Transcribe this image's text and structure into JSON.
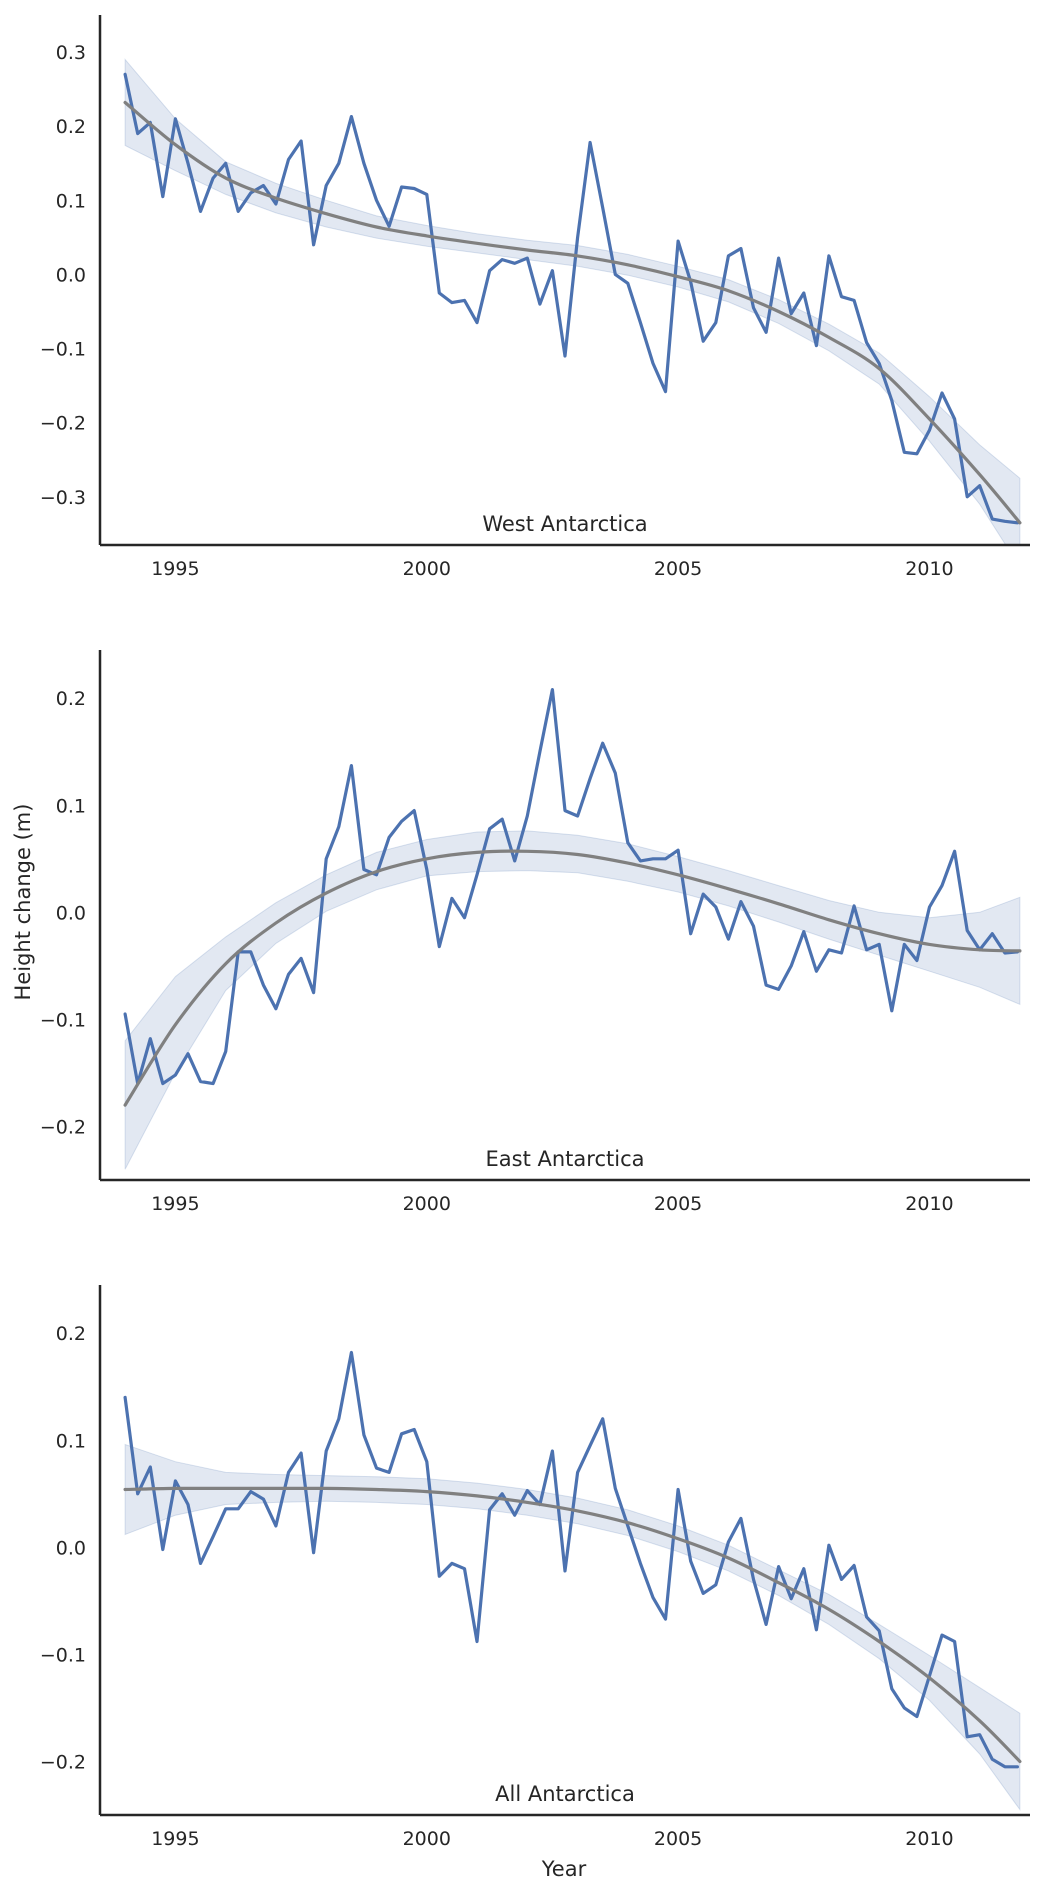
{
  "figure": {
    "ylabel": "Height change (m)",
    "xlabel": "Year",
    "colors": {
      "data": "#4c72b0",
      "fit": "#808080",
      "band": "#4c72b0",
      "axis": "#262626"
    }
  },
  "chart_data": [
    {
      "type": "line",
      "title": "West Antarctica",
      "xlim": [
        1993.5,
        2012.0
      ],
      "ylim": [
        -0.365,
        0.35
      ],
      "xticks": [
        1995,
        2000,
        2005,
        2010
      ],
      "xtick_labels": [
        "1995",
        "2000",
        "2005",
        "2010"
      ],
      "yticks": [
        -0.3,
        -0.2,
        -0.1,
        0.0,
        0.1,
        0.2,
        0.3
      ],
      "ytick_labels": [
        "−0.3",
        "−0.2",
        "−0.1",
        "0.0",
        "0.1",
        "0.2",
        "0.3"
      ],
      "grid": false,
      "x": [
        1994.0,
        1994.25,
        1994.5,
        1994.75,
        1995.0,
        1995.25,
        1995.5,
        1995.75,
        1996.0,
        1996.25,
        1996.5,
        1996.75,
        1997.0,
        1997.25,
        1997.5,
        1997.75,
        1998.0,
        1998.25,
        1998.5,
        1998.75,
        1999.0,
        1999.25,
        1999.5,
        1999.75,
        2000.0,
        2000.25,
        2000.5,
        2000.75,
        2001.0,
        2001.25,
        2001.5,
        2001.75,
        2002.0,
        2002.25,
        2002.5,
        2002.75,
        2003.0,
        2003.25,
        2003.5,
        2003.75,
        2004.0,
        2004.25,
        2004.5,
        2004.75,
        2005.0,
        2005.25,
        2005.5,
        2005.75,
        2006.0,
        2006.25,
        2006.5,
        2006.75,
        2007.0,
        2007.25,
        2007.5,
        2007.75,
        2008.0,
        2008.25,
        2008.5,
        2008.75,
        2009.0,
        2009.25,
        2009.5,
        2009.75,
        2010.0,
        2010.25,
        2010.5,
        2010.75,
        2011.0,
        2011.25,
        2011.5,
        2011.75
      ],
      "series": [
        {
          "values": [
            0.27,
            0.19,
            0.205,
            0.105,
            0.21,
            0.15,
            0.085,
            0.13,
            0.15,
            0.085,
            0.11,
            0.12,
            0.095,
            0.155,
            0.18,
            0.04,
            0.12,
            0.15,
            0.213,
            0.15,
            0.1,
            0.065,
            0.118,
            0.116,
            0.108,
            -0.025,
            -0.038,
            -0.035,
            -0.065,
            0.005,
            0.02,
            0.015,
            0.022,
            -0.04,
            0.005,
            -0.11,
            0.05,
            0.178,
            0.09,
            0.0,
            -0.012,
            -0.065,
            -0.12,
            -0.158,
            0.045,
            -0.01,
            -0.09,
            -0.065,
            0.025,
            0.035,
            -0.045,
            -0.078,
            0.022,
            -0.053,
            -0.025,
            -0.096,
            0.025,
            -0.03,
            -0.035,
            -0.092,
            -0.12,
            -0.17,
            -0.24,
            -0.242,
            -0.21,
            -0.16,
            -0.195,
            -0.3,
            -0.285,
            -0.33,
            -0.333,
            -0.335
          ]
        }
      ],
      "fit": {
        "x": [
          1994,
          1995,
          1996,
          1997,
          1998,
          1999,
          2000,
          2001,
          2002,
          2003,
          2004,
          2005,
          2006,
          2007,
          2008,
          2009,
          2010,
          2011,
          2011.8
        ],
        "y": [
          0.232,
          0.175,
          0.13,
          0.103,
          0.082,
          0.064,
          0.052,
          0.042,
          0.033,
          0.025,
          0.013,
          -0.003,
          -0.022,
          -0.05,
          -0.085,
          -0.127,
          -0.195,
          -0.27,
          -0.335
        ],
        "lower": [
          0.174,
          0.14,
          0.108,
          0.083,
          0.064,
          0.049,
          0.038,
          0.029,
          0.02,
          0.011,
          -0.001,
          -0.017,
          -0.037,
          -0.066,
          -0.103,
          -0.148,
          -0.225,
          -0.31,
          -0.395
        ],
        "upper": [
          0.29,
          0.21,
          0.152,
          0.123,
          0.1,
          0.079,
          0.066,
          0.055,
          0.046,
          0.039,
          0.027,
          0.011,
          -0.007,
          -0.034,
          -0.067,
          -0.106,
          -0.165,
          -0.23,
          -0.275
        ]
      }
    },
    {
      "type": "line",
      "title": "East Antarctica",
      "xlim": [
        1993.5,
        2012.0
      ],
      "ylim": [
        -0.25,
        0.245
      ],
      "xticks": [
        1995,
        2000,
        2005,
        2010
      ],
      "xtick_labels": [
        "1995",
        "2000",
        "2005",
        "2010"
      ],
      "yticks": [
        -0.2,
        -0.1,
        0.0,
        0.1,
        0.2
      ],
      "ytick_labels": [
        "−0.2",
        "−0.1",
        "0.0",
        "0.1",
        "0.2"
      ],
      "grid": false,
      "x": [
        1994.0,
        1994.25,
        1994.5,
        1994.75,
        1995.0,
        1995.25,
        1995.5,
        1995.75,
        1996.0,
        1996.25,
        1996.5,
        1996.75,
        1997.0,
        1997.25,
        1997.5,
        1997.75,
        1998.0,
        1998.25,
        1998.5,
        1998.75,
        1999.0,
        1999.25,
        1999.5,
        1999.75,
        2000.0,
        2000.25,
        2000.5,
        2000.75,
        2001.0,
        2001.25,
        2001.5,
        2001.75,
        2002.0,
        2002.25,
        2002.5,
        2002.75,
        2003.0,
        2003.25,
        2003.5,
        2003.75,
        2004.0,
        2004.25,
        2004.5,
        2004.75,
        2005.0,
        2005.25,
        2005.5,
        2005.75,
        2006.0,
        2006.25,
        2006.5,
        2006.75,
        2007.0,
        2007.25,
        2007.5,
        2007.75,
        2008.0,
        2008.25,
        2008.5,
        2008.75,
        2009.0,
        2009.25,
        2009.5,
        2009.75,
        2010.0,
        2010.25,
        2010.5,
        2010.75,
        2011.0,
        2011.25,
        2011.5,
        2011.75
      ],
      "series": [
        {
          "values": [
            -0.095,
            -0.16,
            -0.118,
            -0.16,
            -0.152,
            -0.132,
            -0.158,
            -0.16,
            -0.13,
            -0.037,
            -0.037,
            -0.068,
            -0.09,
            -0.058,
            -0.043,
            -0.075,
            0.05,
            0.08,
            0.137,
            0.04,
            0.035,
            0.07,
            0.085,
            0.095,
            0.04,
            -0.032,
            0.013,
            -0.005,
            0.035,
            0.078,
            0.087,
            0.048,
            0.09,
            0.15,
            0.208,
            0.095,
            0.09,
            0.125,
            0.158,
            0.13,
            0.065,
            0.048,
            0.05,
            0.05,
            0.058,
            -0.02,
            0.017,
            0.005,
            -0.025,
            0.01,
            -0.013,
            -0.068,
            -0.072,
            -0.05,
            -0.018,
            -0.055,
            -0.035,
            -0.038,
            0.006,
            -0.035,
            -0.03,
            -0.092,
            -0.03,
            -0.045,
            0.005,
            0.025,
            0.057,
            -0.017,
            -0.035,
            -0.02,
            -0.038,
            -0.037
          ]
        }
      ],
      "fit": {
        "x": [
          1994,
          1995,
          1996,
          1997,
          1998,
          1999,
          2000,
          2001,
          2002,
          2003,
          2004,
          2005,
          2006,
          2007,
          2008,
          2009,
          2010,
          2011,
          2011.8
        ],
        "y": [
          -0.18,
          -0.105,
          -0.048,
          -0.01,
          0.018,
          0.038,
          0.05,
          0.056,
          0.057,
          0.054,
          0.046,
          0.035,
          0.022,
          0.008,
          -0.007,
          -0.02,
          -0.03,
          -0.035,
          -0.036
        ],
        "lower": [
          -0.24,
          -0.15,
          -0.073,
          -0.029,
          0.001,
          0.021,
          0.034,
          0.038,
          0.039,
          0.037,
          0.029,
          0.019,
          0.006,
          -0.009,
          -0.025,
          -0.04,
          -0.055,
          -0.07,
          -0.086
        ],
        "upper": [
          -0.12,
          -0.06,
          -0.023,
          0.009,
          0.035,
          0.056,
          0.068,
          0.075,
          0.076,
          0.072,
          0.064,
          0.052,
          0.039,
          0.025,
          0.011,
          0.0,
          -0.005,
          0.0,
          0.014
        ]
      }
    },
    {
      "type": "line",
      "title": "All Antarctica",
      "xlim": [
        1993.5,
        2012.0
      ],
      "ylim": [
        -0.25,
        0.245
      ],
      "xticks": [
        1995,
        2000,
        2005,
        2010
      ],
      "xtick_labels": [
        "1995",
        "2000",
        "2005",
        "2010"
      ],
      "yticks": [
        -0.2,
        -0.1,
        0.0,
        0.1,
        0.2
      ],
      "ytick_labels": [
        "−0.2",
        "−0.1",
        "0.0",
        "0.1",
        "0.2"
      ],
      "grid": false,
      "x": [
        1994.0,
        1994.25,
        1994.5,
        1994.75,
        1995.0,
        1995.25,
        1995.5,
        1995.75,
        1996.0,
        1996.25,
        1996.5,
        1996.75,
        1997.0,
        1997.25,
        1997.5,
        1997.75,
        1998.0,
        1998.25,
        1998.5,
        1998.75,
        1999.0,
        1999.25,
        1999.5,
        1999.75,
        2000.0,
        2000.25,
        2000.5,
        2000.75,
        2001.0,
        2001.25,
        2001.5,
        2001.75,
        2002.0,
        2002.25,
        2002.5,
        2002.75,
        2003.0,
        2003.25,
        2003.5,
        2003.75,
        2004.0,
        2004.25,
        2004.5,
        2004.75,
        2005.0,
        2005.25,
        2005.5,
        2005.75,
        2006.0,
        2006.25,
        2006.5,
        2006.75,
        2007.0,
        2007.25,
        2007.5,
        2007.75,
        2008.0,
        2008.25,
        2008.5,
        2008.75,
        2009.0,
        2009.25,
        2009.5,
        2009.75,
        2010.0,
        2010.25,
        2010.5,
        2010.75,
        2011.0,
        2011.25,
        2011.5,
        2011.75
      ],
      "series": [
        {
          "values": [
            0.14,
            0.05,
            0.075,
            -0.002,
            0.062,
            0.04,
            -0.015,
            0.01,
            0.036,
            0.036,
            0.052,
            0.045,
            0.02,
            0.07,
            0.088,
            -0.005,
            0.09,
            0.12,
            0.182,
            0.105,
            0.074,
            0.07,
            0.106,
            0.11,
            0.08,
            -0.027,
            -0.015,
            -0.02,
            -0.088,
            0.035,
            0.05,
            0.03,
            0.053,
            0.04,
            0.09,
            -0.022,
            0.07,
            0.095,
            0.12,
            0.055,
            0.02,
            -0.015,
            -0.047,
            -0.067,
            0.054,
            -0.013,
            -0.043,
            -0.035,
            0.005,
            0.027,
            -0.03,
            -0.072,
            -0.018,
            -0.048,
            -0.02,
            -0.077,
            0.002,
            -0.03,
            -0.017,
            -0.065,
            -0.078,
            -0.132,
            -0.15,
            -0.158,
            -0.12,
            -0.082,
            -0.088,
            -0.177,
            -0.175,
            -0.198,
            -0.205,
            -0.205
          ]
        }
      ],
      "fit": {
        "x": [
          1994,
          1995,
          1996,
          1997,
          1998,
          1999,
          2000,
          2001,
          2002,
          2003,
          2004,
          2005,
          2006,
          2007,
          2008,
          2009,
          2010,
          2011,
          2011.8
        ],
        "y": [
          0.054,
          0.055,
          0.055,
          0.055,
          0.055,
          0.054,
          0.052,
          0.048,
          0.042,
          0.034,
          0.023,
          0.008,
          -0.01,
          -0.033,
          -0.058,
          -0.088,
          -0.122,
          -0.162,
          -0.2
        ],
        "lower": [
          0.012,
          0.03,
          0.04,
          0.042,
          0.043,
          0.042,
          0.04,
          0.036,
          0.03,
          0.022,
          0.011,
          -0.004,
          -0.022,
          -0.045,
          -0.072,
          -0.104,
          -0.143,
          -0.193,
          -0.245
        ],
        "upper": [
          0.096,
          0.08,
          0.07,
          0.068,
          0.067,
          0.066,
          0.064,
          0.06,
          0.054,
          0.046,
          0.035,
          0.02,
          0.002,
          -0.021,
          -0.044,
          -0.072,
          -0.101,
          -0.131,
          -0.155
        ]
      }
    }
  ]
}
